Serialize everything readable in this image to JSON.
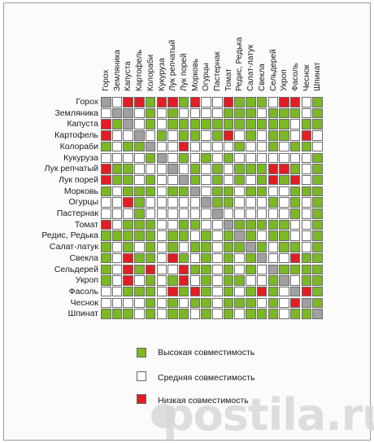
{
  "plants": [
    "Горох",
    "Земляника",
    "Капуста",
    "Картофель",
    "Колораби",
    "Кукуруза",
    "Лук репчатый",
    "Лук порей",
    "Морковь",
    "Огурцы",
    "Пастернак",
    "Томат",
    "Редис, Редька",
    "Салат-латук",
    "Свекла",
    "Сельдерей",
    "Укроп",
    "Фасоль",
    "Чеснок",
    "Шпинат"
  ],
  "matrix": [
    "xwrrgrrgrwwrgggwrrwg",
    "wxxwgwgwwwwgggwgggwg",
    "rgxwgwgggggggggggwgg",
    "rwwxwgwggwgrwgwggwrw",
    "gwggxwwrwwwwgwwgwggw",
    "wwwwgxwgwgwgwwwwwwwg",
    "rggwwwxwgwgwgggrrgwg",
    "rggwgwwxgwgwgwgrgrwg",
    "gwgggwggxwggwggwwggg",
    "wwrgwwwwwxggwwwgwgwg",
    "wwwgwwwwwwxwwwwwwgwg",
    "rwgggwwggwwxgggggwwg",
    "gggggwggwgwgxgwggwwg",
    "gwgwgwgwggwggxgwggwg",
    "gwrggwrgwgwgwgxwwrgg",
    "gwrgrwwrggwgwgwxgggg",
    "gwrwgwgrwgwggwwgxwgg",
    "wwgggwrgrgwgwgrgwxrg",
    "wwwwgwgwggwgggwgwrxg",
    "gggwgwggwgwgwgggwggx"
  ],
  "colors": {
    "high": "#7bb824",
    "medium": "#ffffff",
    "low": "#e21d23",
    "self": "#a0a0a0",
    "grid": "#6c6c6c"
  },
  "legend": {
    "high": "Высокая совместимость",
    "medium": "Средняя совместимость",
    "low": "Низкая совместимость"
  },
  "watermark": "postila.ru"
}
